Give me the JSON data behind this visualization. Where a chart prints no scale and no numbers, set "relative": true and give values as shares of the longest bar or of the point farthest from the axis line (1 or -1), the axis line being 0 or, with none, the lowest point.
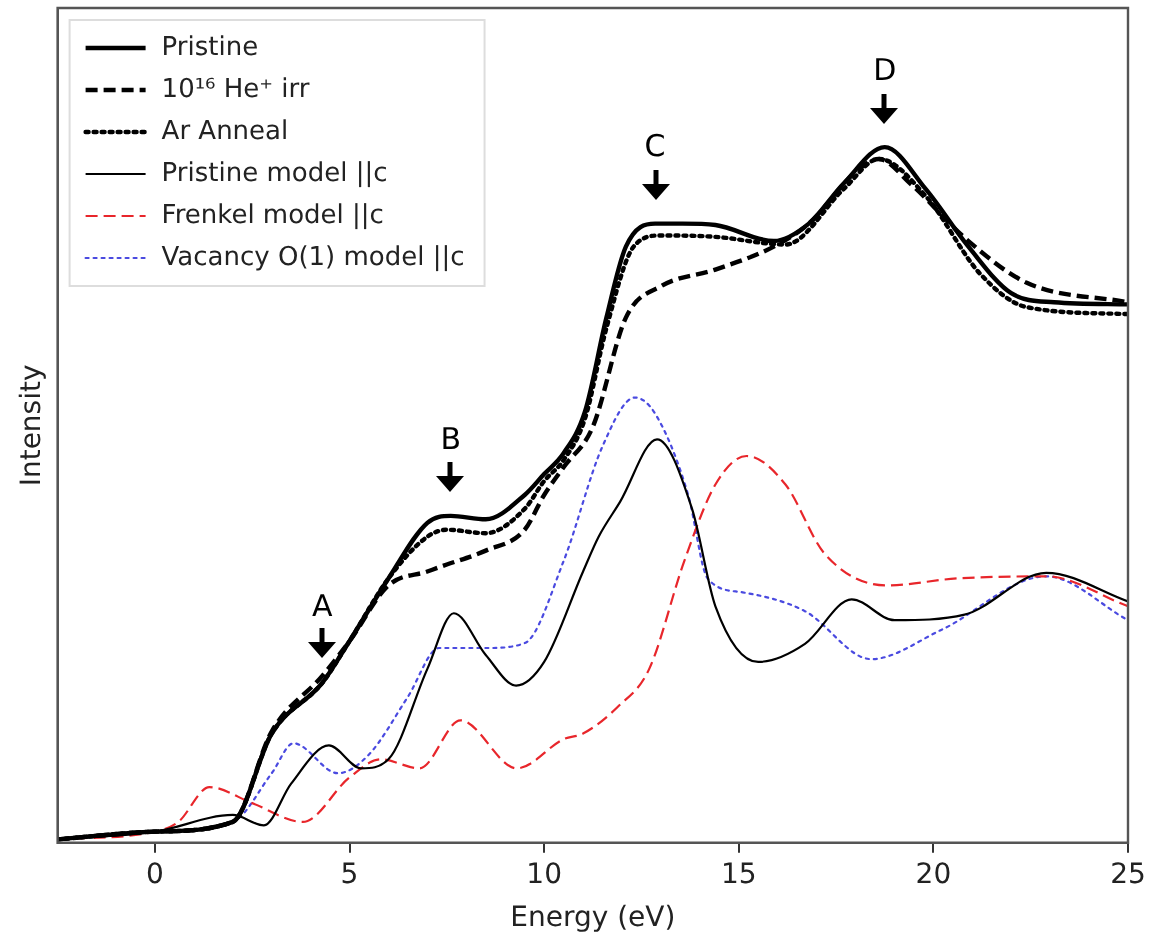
{
  "chart_data": {
    "type": "line",
    "relative": true,
    "xlabel": "Energy (eV)",
    "ylabel": "Intensity",
    "xlim": [
      -2.5,
      25
    ],
    "xticks": [
      0,
      5,
      10,
      15,
      20,
      25
    ],
    "grid": false,
    "legend": "top left",
    "marker": "none",
    "annotations": [
      {
        "text": "A",
        "x": 4.3,
        "y": 0.23
      },
      {
        "text": "B",
        "x": 7.6,
        "y": 0.47
      },
      {
        "text": "C",
        "x": 12.85,
        "y": 0.89
      },
      {
        "text": "D",
        "x": 18.75,
        "y": 1
      }
    ],
    "series": [
      {
        "name": "Pristine",
        "color": "#000000",
        "line_style": "solid",
        "x": [
          -2.5,
          0,
          2,
          3,
          4.3,
          5,
          6,
          7,
          7.6,
          8.5,
          9.5,
          10,
          10.5,
          11.05,
          11.6,
          12.1,
          12.85,
          13.55,
          14.4,
          15.9,
          16.8,
          17.7,
          18.75,
          19.8,
          20.9,
          22,
          23.1,
          25
        ],
        "values": [
          0.005,
          0.016,
          0.03,
          0.157,
          0.23,
          0.29,
          0.38,
          0.46,
          0.47,
          0.465,
          0.5,
          0.53,
          0.56,
          0.62,
          0.755,
          0.857,
          0.89,
          0.89,
          0.888,
          0.865,
          0.89,
          0.948,
          1,
          0.94,
          0.857,
          0.79,
          0.777,
          0.774
        ]
      },
      {
        "name": "10¹⁶ He⁺ irr",
        "color": "#000000",
        "line_style": "dashed",
        "x": [
          -2.5,
          0,
          2,
          3,
          4.3,
          5,
          6,
          7,
          7.5,
          8.5,
          9.5,
          10,
          10.5,
          11.25,
          12.1,
          13,
          14.4,
          15.9,
          16.8,
          18.05,
          18.6,
          19.4,
          20.9,
          22.4,
          25
        ],
        "values": [
          0.005,
          0.016,
          0.03,
          0.16,
          0.24,
          0.29,
          0.37,
          0.39,
          0.4,
          0.42,
          0.45,
          0.5,
          0.54,
          0.598,
          0.755,
          0.8,
          0.824,
          0.857,
          0.89,
          0.967,
          0.983,
          0.948,
          0.865,
          0.805,
          0.777
        ]
      },
      {
        "name": "Ar Anneal",
        "color": "#000000",
        "line_style": "dotted",
        "x": [
          -2.5,
          0,
          2,
          3,
          4.3,
          5,
          6,
          7,
          7.5,
          8.5,
          9.5,
          10,
          10.5,
          11.05,
          11.6,
          12.3,
          13,
          14.4,
          16.2,
          17.7,
          18.6,
          19.8,
          21.2,
          22.4,
          25
        ],
        "values": [
          0.005,
          0.016,
          0.03,
          0.157,
          0.23,
          0.29,
          0.38,
          0.44,
          0.45,
          0.445,
          0.48,
          0.52,
          0.55,
          0.61,
          0.74,
          0.857,
          0.873,
          0.871,
          0.86,
          0.94,
          0.983,
          0.93,
          0.818,
          0.77,
          0.76
        ]
      },
      {
        "name": "Pristine model ||c",
        "color": "#000000",
        "line_style": "solid",
        "x": [
          -2.5,
          0,
          2,
          2.8,
          3.5,
          4.47,
          5.3,
          6,
          7,
          7.68,
          8.5,
          9.28,
          10,
          11,
          11.4,
          11.95,
          12.9,
          13.8,
          14.4,
          15.5,
          16.7,
          17.9,
          19,
          20.8,
          22.9,
          25
        ],
        "values": [
          0.005,
          0.016,
          0.04,
          0.025,
          0.085,
          0.14,
          0.107,
          0.12,
          0.25,
          0.33,
          0.27,
          0.226,
          0.26,
          0.39,
          0.44,
          0.49,
          0.58,
          0.48,
          0.34,
          0.26,
          0.286,
          0.35,
          0.32,
          0.328,
          0.388,
          0.347
        ]
      },
      {
        "name": "Frenkel model ||c",
        "color": "#e8262b",
        "line_style": "dashed",
        "x": [
          -2.5,
          0,
          0.6,
          1.4,
          2.5,
          3.8,
          5,
          5.8,
          6.8,
          7.85,
          9.3,
          10.5,
          11,
          11.9,
          12.7,
          13.6,
          14.4,
          15.2,
          16.2,
          17.2,
          18.8,
          20.6,
          22.9,
          25
        ],
        "values": [
          0.005,
          0.016,
          0.03,
          0.08,
          0.057,
          0.03,
          0.094,
          0.12,
          0.107,
          0.176,
          0.107,
          0.149,
          0.157,
          0.196,
          0.25,
          0.405,
          0.515,
          0.556,
          0.515,
          0.416,
          0.37,
          0.38,
          0.383,
          0.34
        ]
      },
      {
        "name": "Vacancy O(1) model ||c",
        "color": "#4a4ae0",
        "line_style": "dotted",
        "x": [
          -2.5,
          0,
          2,
          3,
          3.56,
          4.7,
          5.5,
          6.5,
          7.3,
          8.5,
          9.5,
          10.5,
          11.5,
          12.33,
          12.85,
          13.7,
          14.2,
          15.1,
          16.7,
          18.4,
          20.2,
          22.9,
          25
        ],
        "values": [
          0.005,
          0.016,
          0.03,
          0.1,
          0.143,
          0.1,
          0.127,
          0.21,
          0.28,
          0.28,
          0.287,
          0.405,
          0.57,
          0.64,
          0.617,
          0.5,
          0.38,
          0.36,
          0.333,
          0.264,
          0.306,
          0.383,
          0.32
        ]
      }
    ]
  }
}
